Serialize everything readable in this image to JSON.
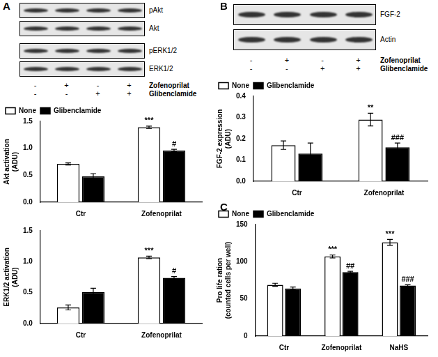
{
  "panel_labels": [
    "A",
    "B",
    "C"
  ],
  "blots": [
    {
      "panel": "A",
      "rows": [
        "pAkt",
        "Akt",
        "pERK1/2",
        "ERK1/2"
      ],
      "treatments": [
        {
          "name": "Zofenoprilat",
          "lanes": [
            "-",
            "+",
            "-",
            "+"
          ]
        },
        {
          "name": "Glibenclamide",
          "lanes": [
            "-",
            "-",
            "+",
            "+"
          ]
        }
      ]
    },
    {
      "panel": "B",
      "rows": [
        "FGF-2",
        "Actin"
      ],
      "treatments": [
        {
          "name": "Zofenoprilat",
          "lanes": [
            "-",
            "+",
            "-",
            "+"
          ]
        },
        {
          "name": "Glibenclamide",
          "lanes": [
            "-",
            "-",
            "+",
            "+"
          ]
        }
      ]
    }
  ],
  "chart_data": [
    {
      "panel": "A",
      "type": "bar",
      "categories": [
        "Ctr",
        "Zofenoprilat"
      ],
      "series": [
        {
          "name": "None",
          "color": "#ffffff",
          "values": [
            0.71,
            1.39
          ],
          "errors": [
            0.02,
            0.02
          ]
        },
        {
          "name": "Glibenclamide",
          "color": "#000000",
          "values": [
            0.48,
            0.96
          ],
          "errors": [
            0.05,
            0.02
          ]
        }
      ],
      "ylim": [
        0,
        1.5
      ],
      "yticks": [
        {
          "value": 0,
          "label": "0.0"
        },
        {
          "value": 0.5,
          "label": "0.5"
        },
        {
          "value": 1,
          "label": "1.0"
        },
        {
          "value": 1.5,
          "label": "1.5"
        }
      ],
      "y_label": [
        "Akt activation",
        "(ADU)"
      ],
      "legend": "top",
      "grid": false,
      "annotations": [
        {
          "category": "Zofenoprilat",
          "series": "None",
          "text": "***"
        },
        {
          "category": "Zofenoprilat",
          "series": "Glibenclamide",
          "text": "#"
        }
      ]
    },
    {
      "panel": "A",
      "type": "bar",
      "categories": [
        "Ctr",
        "Zofenoprilat"
      ],
      "series": [
        {
          "name": "None",
          "color": "#ffffff",
          "values": [
            0.26,
            1.07
          ],
          "errors": [
            0.04,
            0.02
          ]
        },
        {
          "name": "Glibenclamide",
          "color": "#000000",
          "values": [
            0.51,
            0.74
          ],
          "errors": [
            0.06,
            0.02
          ]
        }
      ],
      "ylim": [
        0,
        1.5
      ],
      "yticks": [
        {
          "value": 0,
          "label": "0.0"
        },
        {
          "value": 0.5,
          "label": "0.5"
        },
        {
          "value": 1,
          "label": "1.0"
        },
        {
          "value": 1.5,
          "label": "1.5"
        }
      ],
      "y_label": [
        "ERK1/2 activation",
        "(ADU)"
      ],
      "grid": false,
      "annotations": [
        {
          "category": "Zofenoprilat",
          "series": "None",
          "text": "***"
        },
        {
          "category": "Zofenoprilat",
          "series": "Glibenclamide",
          "text": "#"
        }
      ]
    },
    {
      "panel": "B",
      "type": "bar",
      "categories": [
        "Ctr",
        "Zofenoprilat"
      ],
      "series": [
        {
          "name": "None",
          "color": "#ffffff",
          "values": [
            0.17,
            0.29
          ],
          "errors": [
            0.02,
            0.03
          ]
        },
        {
          "name": "Glibenclamide",
          "color": "#000000",
          "values": [
            0.13,
            0.16
          ],
          "errors": [
            0.05,
            0.02
          ]
        }
      ],
      "ylim": [
        0,
        0.4
      ],
      "yticks": [
        {
          "value": 0,
          "label": "0.0"
        },
        0.1,
        0.2,
        0.3,
        0.4
      ],
      "y_label": [
        "FGF-2 expression",
        "(ADU)"
      ],
      "legend": "top",
      "grid": false,
      "annotations": [
        {
          "category": "Zofenoprilat",
          "series": "None",
          "text": "**"
        },
        {
          "category": "Zofenoprilat",
          "series": "Glibenclamide",
          "text": "###"
        }
      ]
    },
    {
      "panel": "C",
      "type": "bar",
      "categories": [
        "Ctr",
        "Zofenoprilat",
        "NaHS"
      ],
      "series": [
        {
          "name": "None",
          "color": "#ffffff",
          "values": [
            69,
            107,
            126
          ],
          "errors": [
            2,
            2,
            4
          ]
        },
        {
          "name": "Glibenclamide",
          "color": "#000000",
          "values": [
            64,
            86,
            68
          ],
          "errors": [
            2,
            1,
            1
          ]
        }
      ],
      "ylim": [
        0,
        150
      ],
      "yticks": [
        0,
        50,
        100,
        150
      ],
      "y_label": [
        "Pro life ration",
        "(counted cells per well)"
      ],
      "legend": "top",
      "grid": false,
      "annotations": [
        {
          "category": "Zofenoprilat",
          "series": "None",
          "text": "***"
        },
        {
          "category": "Zofenoprilat",
          "series": "Glibenclamide",
          "text": "##"
        },
        {
          "category": "NaHS",
          "series": "None",
          "text": "***"
        },
        {
          "category": "NaHS",
          "series": "Glibenclamide",
          "text": "###"
        }
      ]
    }
  ]
}
